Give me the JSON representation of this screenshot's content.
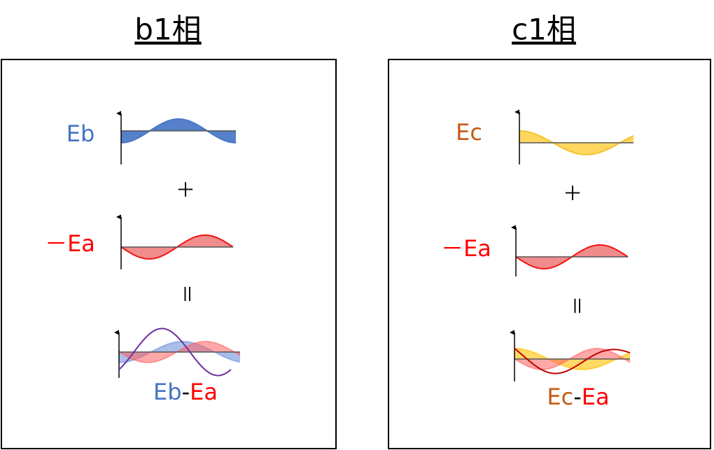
{
  "panels": [
    {
      "title": "b1相",
      "top_label": "Eb",
      "plus": "＋",
      "middle_label": "－Ea",
      "equals": "＝",
      "result_label": [
        "Eb",
        "-",
        "Ea"
      ]
    },
    {
      "title": "c1相",
      "top_label": "Ec",
      "plus": "＋",
      "middle_label": "－Ea",
      "equals": "＝",
      "result_label": [
        "Ec",
        "-",
        "Ea"
      ]
    }
  ]
}
